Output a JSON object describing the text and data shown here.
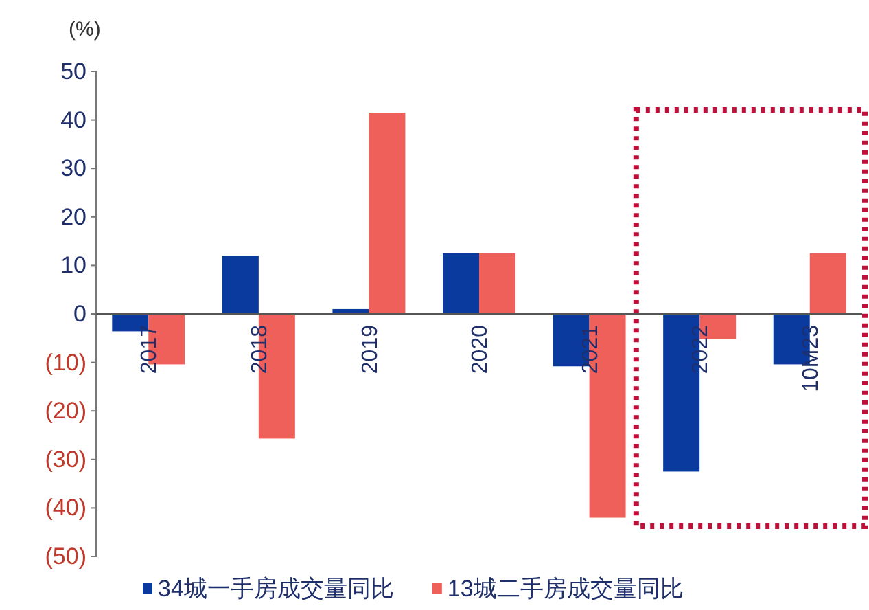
{
  "chart_data": {
    "type": "bar",
    "ylabel": "(%)",
    "categories": [
      "2017",
      "2018",
      "2019",
      "2020",
      "2021",
      "2022",
      "10M23"
    ],
    "series": [
      {
        "name": "34城一手房成交量同比",
        "color": "#0a3a9e",
        "values": [
          -3.6,
          12,
          1,
          12.5,
          -10.8,
          -32.5,
          -10.4
        ]
      },
      {
        "name": "13城二手房成交量同比",
        "color": "#f0605a",
        "values": [
          -10.4,
          -25.7,
          41.5,
          12.5,
          -42,
          -5.2,
          12.5
        ]
      }
    ],
    "ylim": [
      -50,
      50
    ],
    "yticks": [
      {
        "value": -50,
        "label": "(50)"
      },
      {
        "value": -40,
        "label": "(40)"
      },
      {
        "value": -30,
        "label": "(30)"
      },
      {
        "value": -20,
        "label": "(20)"
      },
      {
        "value": -10,
        "label": "(10)"
      },
      0,
      10,
      20,
      30,
      40,
      50
    ],
    "legend": "bottom",
    "grid": false
  }
}
